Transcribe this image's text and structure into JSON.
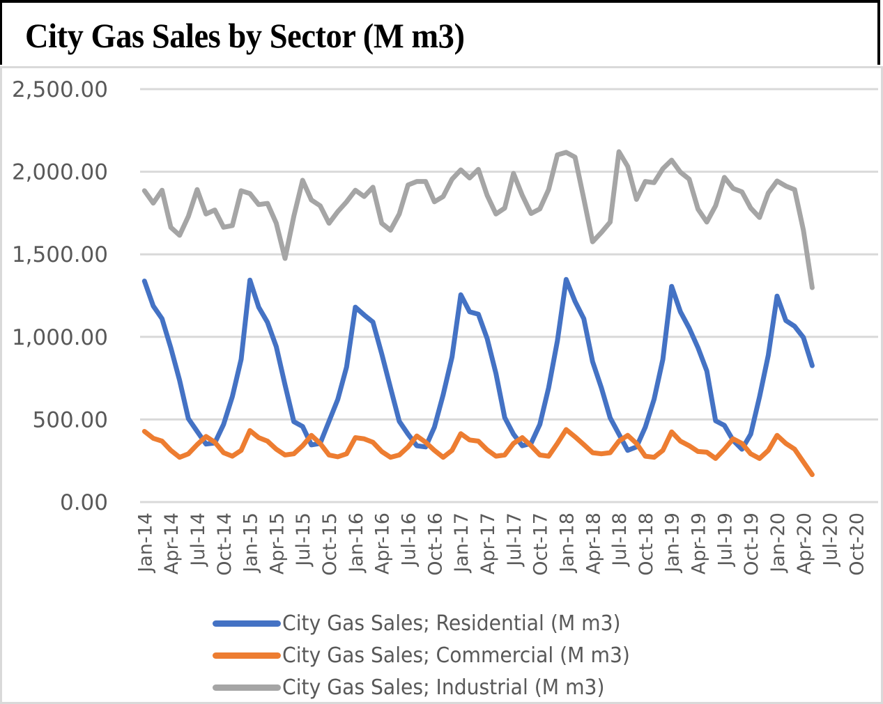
{
  "chart_data": {
    "type": "line",
    "title": "City Gas Sales by Sector (M m3)",
    "xlabel": "",
    "ylabel": "",
    "ylim": [
      0,
      2500
    ],
    "yticks": [
      0,
      500,
      1000,
      1500,
      2000,
      2500
    ],
    "ytick_labels": [
      "0.00",
      "500.00",
      "1,000.00",
      "1,500.00",
      "2,000.00",
      "2,500.00"
    ],
    "grid": true,
    "legend_position": "bottom",
    "x_axis_months": 84,
    "xtick_labels": [
      "Jan-14",
      "Apr-14",
      "Jul-14",
      "Oct-14",
      "Jan-15",
      "Apr-15",
      "Jul-15",
      "Oct-15",
      "Jan-16",
      "Apr-16",
      "Jul-16",
      "Oct-16",
      "Jan-17",
      "Apr-17",
      "Jul-17",
      "Oct-17",
      "Jan-18",
      "Apr-18",
      "Jul-18",
      "Oct-18",
      "Jan-19",
      "Apr-19",
      "Jul-19",
      "Oct-19",
      "Jan-20",
      "Apr-20",
      "Jul-20",
      "Oct-20"
    ],
    "x_start": "Jan-14",
    "x_end_data": "May-20",
    "series": [
      {
        "name": "City Gas Sales; Residential (M m3)",
        "color": "#4472c4",
        "values": [
          1338,
          1187,
          1110,
          934,
          737,
          505,
          428,
          351,
          358,
          470,
          639,
          864,
          1344,
          1180,
          1088,
          941,
          709,
          487,
          458,
          346,
          355,
          489,
          622,
          818,
          1180,
          1133,
          1090,
          898,
          692,
          489,
          411,
          341,
          334,
          453,
          650,
          878,
          1255,
          1152,
          1137,
          990,
          779,
          512,
          411,
          341,
          355,
          470,
          692,
          976,
          1348,
          1215,
          1110,
          850,
          692,
          510,
          411,
          313,
          334,
          453,
          622,
          864,
          1306,
          1152,
          1053,
          934,
          794,
          492,
          464,
          373,
          320,
          411,
          636,
          889,
          1247,
          1099,
          1064,
          996,
          826
        ]
      },
      {
        "name": "City Gas Sales; Commercial (M m3)",
        "color": "#ed7d31",
        "values": [
          428,
          386,
          369,
          313,
          271,
          292,
          348,
          397,
          362,
          299,
          278,
          313,
          433,
          390,
          369,
          320,
          285,
          292,
          341,
          404,
          355,
          285,
          274,
          292,
          390,
          383,
          362,
          306,
          271,
          285,
          334,
          400,
          362,
          313,
          271,
          313,
          414,
          376,
          369,
          316,
          278,
          285,
          355,
          390,
          341,
          285,
          278,
          355,
          439,
          395,
          348,
          299,
          292,
          299,
          369,
          404,
          355,
          278,
          271,
          313,
          425,
          369,
          341,
          306,
          302,
          264,
          320,
          383,
          355,
          292,
          264,
          313,
          404,
          355,
          320,
          243,
          166
        ]
      },
      {
        "name": "City Gas Sales; Industrial (M m3)",
        "color": "#a5a5a5",
        "values": [
          1885,
          1810,
          1888,
          1663,
          1615,
          1730,
          1892,
          1744,
          1768,
          1664,
          1674,
          1885,
          1868,
          1801,
          1808,
          1688,
          1475,
          1730,
          1948,
          1829,
          1794,
          1688,
          1759,
          1818,
          1888,
          1850,
          1906,
          1688,
          1646,
          1744,
          1920,
          1941,
          1941,
          1818,
          1850,
          1955,
          2011,
          1962,
          2014,
          1857,
          1744,
          1780,
          1990,
          1857,
          1747,
          1775,
          1892,
          2102,
          2117,
          2088,
          1836,
          1576,
          1632,
          1695,
          2121,
          2032,
          1832,
          1941,
          1934,
          2018,
          2070,
          1997,
          1955,
          1773,
          1695,
          1794,
          1966,
          1899,
          1878,
          1780,
          1723,
          1871,
          1944,
          1913,
          1892,
          1646,
          1298
        ]
      }
    ]
  },
  "legend": {
    "items": [
      {
        "label": "City Gas Sales; Residential (M m3)",
        "color": "#4472c4"
      },
      {
        "label": "City Gas Sales; Commercial (M m3)",
        "color": "#ed7d31"
      },
      {
        "label": "City Gas Sales; Industrial (M m3)",
        "color": "#a5a5a5"
      }
    ]
  },
  "colors": {
    "gridline": "#d9d9d9",
    "frame": "#d9d9d9",
    "tick_text": "#595959",
    "title_border": "#000000"
  }
}
